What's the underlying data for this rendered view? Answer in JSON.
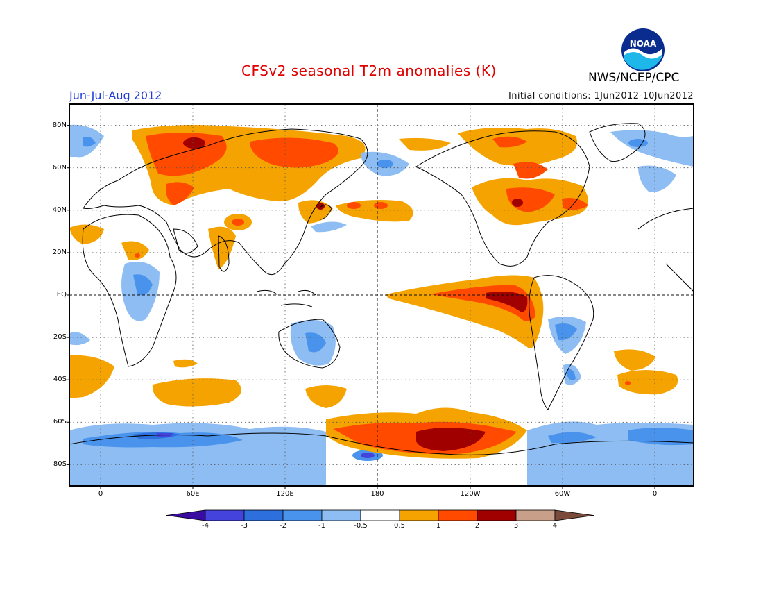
{
  "header": {
    "title": "CFSv2 seasonal T2m anomalies (K)",
    "agency": "NWS/NCEP/CPC",
    "logo_text": "NOAA",
    "period": "Jun-Jul-Aug 2012",
    "initial_conditions": "Initial conditions: 1Jun2012-10Jun2012"
  },
  "map": {
    "projection": "equirectangular, centered 180",
    "lat_labels": [
      "80N",
      "60N",
      "40N",
      "20N",
      "EQ",
      "20S",
      "40S",
      "60S",
      "80S"
    ],
    "lon_labels": [
      "0",
      "60E",
      "120E",
      "180",
      "120W",
      "60W",
      "0"
    ],
    "grid": "dotted, every 20° lat / 60° lon",
    "reference_lines": "dashed equator and 180° meridian"
  },
  "colorbar": {
    "labels": [
      "-4",
      "-3",
      "-2",
      "-1",
      "-0.5",
      "0.5",
      "1",
      "2",
      "3",
      "4"
    ],
    "colors": [
      "#3a0ba0",
      "#4444dd",
      "#2d6fdd",
      "#4a93ec",
      "#8dbdf2",
      "#ffffff",
      "#f5a300",
      "#ff4a00",
      "#a00000",
      "#c8a08a",
      "#7a4a3a"
    ]
  }
}
